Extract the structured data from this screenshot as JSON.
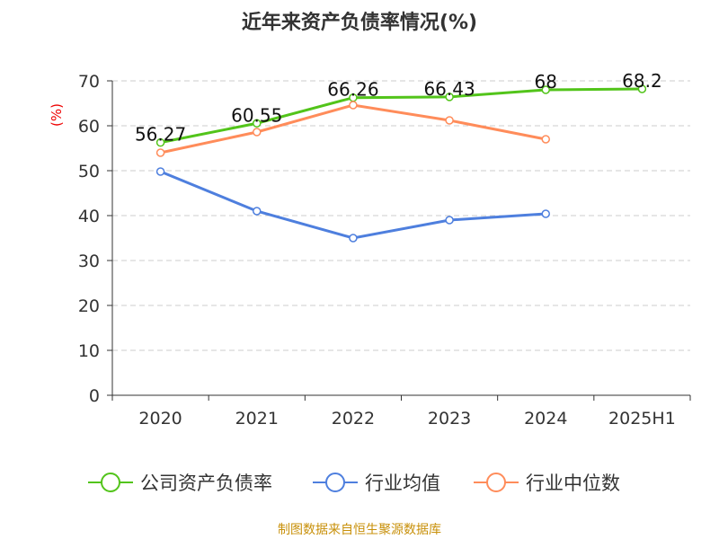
{
  "chart_data": {
    "type": "line",
    "title": "近年来资产负债率情况(%)",
    "ylabel": "(%)",
    "categories": [
      "2020",
      "2021",
      "2022",
      "2023",
      "2024",
      "2025H1"
    ],
    "ylim": [
      0,
      70
    ],
    "yticks": [
      0,
      10,
      20,
      30,
      40,
      50,
      60,
      70
    ],
    "grid": true,
    "legend_position": "bottom",
    "series": [
      {
        "name": "公司资产负债率",
        "color": "#52c41a",
        "values": [
          56.27,
          60.55,
          66.26,
          66.43,
          68,
          68.2
        ],
        "labels": [
          "56.27",
          "60.55",
          "66.26",
          "66.43",
          "68",
          "68.2"
        ]
      },
      {
        "name": "行业均值",
        "color": "#4e7fde",
        "values": [
          49.8,
          41,
          35,
          39,
          40.4,
          null
        ]
      },
      {
        "name": "行业中位数",
        "color": "#ff8c5a",
        "values": [
          54,
          58.6,
          64.6,
          61.2,
          57,
          null
        ]
      }
    ]
  },
  "footer": {
    "source": "制图数据来自恒生聚源数据库"
  }
}
